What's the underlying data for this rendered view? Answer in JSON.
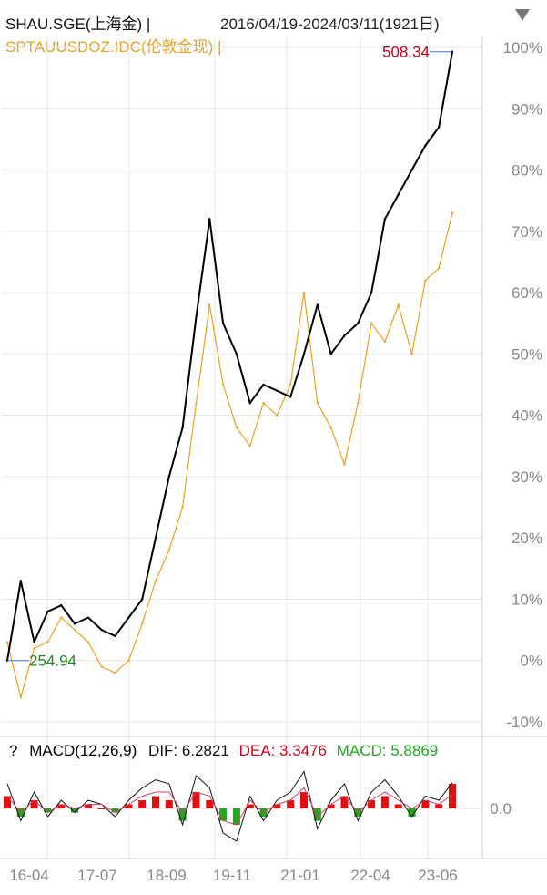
{
  "header": {
    "series1_label": "SHAU.SGE(上海金) |",
    "series2_label": "SPTAUUSDOZ.IDC(伦敦金现) |",
    "range_label": "2016/04/19-2024/03/11(1921日)"
  },
  "macd_legend": {
    "help": "?",
    "name": "MACD(12,26,9)",
    "dif": "DIF: 6.2821",
    "dea": "DEA: 3.3476",
    "macd": "MACD: 5.8869"
  },
  "annotations": {
    "max_label": "508.34",
    "min_label": "254.94"
  },
  "colors": {
    "series1": "#000000",
    "series2": "#f0a020",
    "max_label": "#c0001a",
    "min_label": "#1e8a1e",
    "macd_pos": "#e01010",
    "macd_neg": "#1ea81e",
    "grid": "#e6e6e6",
    "axis_text": "#888888"
  },
  "chart_data": [
    {
      "type": "line",
      "y_axis": "percent change",
      "ylim": [
        -10,
        100
      ],
      "yticks": [
        "100%",
        "90%",
        "80%",
        "70%",
        "60%",
        "50%",
        "40%",
        "30%",
        "20%",
        "10%",
        "0%",
        "-10%"
      ],
      "ytick_values": [
        100,
        90,
        80,
        70,
        60,
        50,
        40,
        30,
        20,
        10,
        0,
        -10
      ],
      "xticks": [
        "16-04",
        "17-07",
        "18-09",
        "19-11",
        "21-01",
        "22-04",
        "23-06"
      ],
      "x": [
        "16-04",
        "16-07",
        "16-10",
        "17-01",
        "17-04",
        "17-07",
        "17-10",
        "18-01",
        "18-04",
        "18-07",
        "18-09",
        "18-12",
        "19-03",
        "19-06",
        "19-09",
        "19-11",
        "20-02",
        "20-05",
        "20-08",
        "20-11",
        "21-01",
        "21-04",
        "21-07",
        "21-10",
        "22-01",
        "22-04",
        "22-07",
        "22-10",
        "23-01",
        "23-03",
        "23-06",
        "23-09",
        "23-12",
        "24-03"
      ],
      "series": [
        {
          "name": "SHAU.SGE(上海金)",
          "values": [
            0,
            13,
            3,
            8,
            9,
            6,
            7,
            5,
            4,
            7,
            10,
            20,
            30,
            38,
            56,
            72,
            55,
            50,
            42,
            45,
            44,
            43,
            50,
            58,
            50,
            53,
            55,
            60,
            72,
            76,
            80,
            84,
            87,
            99.3
          ]
        },
        {
          "name": "SPTAUUSDOZ.IDC(伦敦金现)",
          "values": [
            3,
            -6,
            2,
            3,
            7,
            5,
            3,
            -1,
            -2,
            0,
            6,
            13,
            18,
            25,
            42,
            58,
            45,
            38,
            35,
            42,
            40,
            45,
            60,
            42,
            38,
            32,
            42,
            55,
            52,
            58,
            50,
            62,
            64,
            73
          ]
        }
      ],
      "max_value": 508.34,
      "min_value": 254.94
    },
    {
      "type": "bar",
      "name": "MACD(12,26,9)",
      "ytick_labels": [
        "0.0"
      ],
      "ylim": [
        -10,
        10
      ],
      "x": [
        "16-04",
        "16-07",
        "16-10",
        "17-01",
        "17-04",
        "17-07",
        "17-10",
        "18-01",
        "18-04",
        "18-07",
        "18-09",
        "18-12",
        "19-03",
        "19-06",
        "19-09",
        "19-11",
        "20-02",
        "20-05",
        "20-08",
        "20-11",
        "21-01",
        "21-04",
        "21-07",
        "21-10",
        "22-01",
        "22-04",
        "22-07",
        "22-10",
        "23-01",
        "23-03",
        "23-06",
        "23-09",
        "23-12",
        "24-03"
      ],
      "values": [
        3,
        -2,
        2,
        -1,
        1,
        -1,
        1,
        0,
        -1,
        1,
        2,
        3,
        2,
        -3,
        4,
        2,
        -3,
        -4,
        1,
        -2,
        1,
        2,
        4,
        -3,
        1,
        3,
        -2,
        2,
        3,
        1,
        -2,
        2,
        1,
        6
      ],
      "dif": [
        6,
        -3,
        4,
        -2,
        2,
        -1,
        2,
        1,
        -2,
        2,
        5,
        7,
        6,
        -4,
        8,
        5,
        -6,
        -8,
        3,
        -3,
        2,
        4,
        9,
        -5,
        2,
        6,
        -3,
        4,
        7,
        3,
        -2,
        3,
        2,
        6.2821
      ],
      "dea": [
        3,
        -1,
        2,
        -1,
        1,
        0,
        1,
        1,
        -1,
        1,
        3,
        4,
        4,
        -1,
        4,
        3,
        -3,
        -4,
        2,
        -1,
        1,
        2,
        5,
        -2,
        1,
        3,
        -1,
        2,
        4,
        2,
        0,
        2,
        1,
        3.3476
      ]
    }
  ]
}
